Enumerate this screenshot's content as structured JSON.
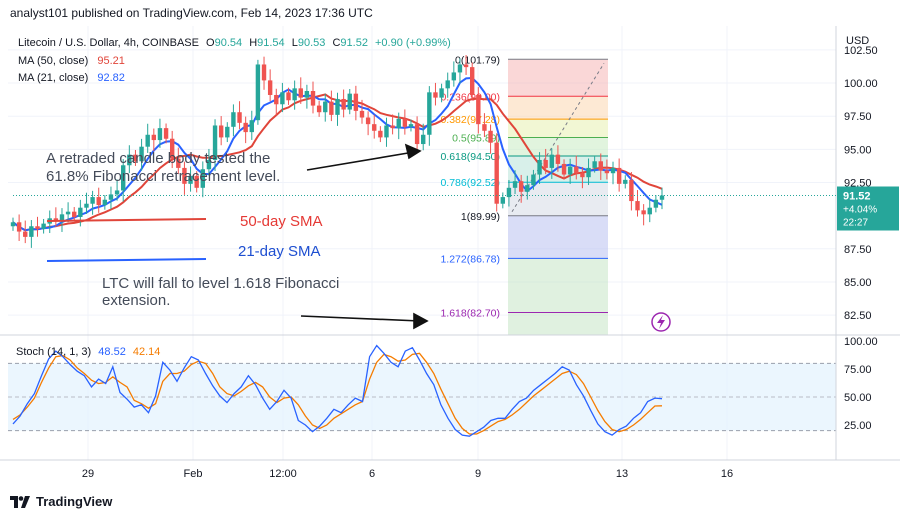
{
  "header": {
    "author": "analyst101",
    "text_mid": "published on",
    "site": "TradingView.com",
    "date": "Feb 14, 2023 17:36 UTC"
  },
  "legend": {
    "symbol": "Litecoin / U.S. Dollar, 4h, COINBASE",
    "o_label": "O",
    "o": "90.54",
    "h_label": "H",
    "h": "91.54",
    "l_label": "L",
    "l": "90.53",
    "c_label": "C",
    "c": "91.52",
    "change": "+0.90 (+0.99%)",
    "ma50_label": "MA (50, close)",
    "ma50_value": "95.21",
    "ma21_label": "MA (21, close)",
    "ma21_value": "92.82"
  },
  "price_axis": {
    "currency": "USD",
    "ticks": [
      "102.50",
      "100.00",
      "97.50",
      "95.00",
      "92.50",
      "87.50",
      "85.00",
      "82.50"
    ],
    "last_price": "91.52",
    "last_change_pct": "+4.04%",
    "countdown": "22:27"
  },
  "stoch_axis": {
    "ticks": [
      "100.00",
      "75.00",
      "50.00",
      "25.00"
    ]
  },
  "time_axis": {
    "ticks": [
      "29",
      "Feb",
      "12:00",
      "6",
      "9",
      "13",
      "16"
    ]
  },
  "stoch_legend": {
    "label": "Stoch (14, 1, 3)",
    "k": "48.52",
    "d": "42.14"
  },
  "fib_levels": [
    {
      "label": "0(101.79)",
      "value": 101.79
    },
    {
      "label": "0.236(99.00)",
      "value": 99.0
    },
    {
      "label": "0.382(97.28)",
      "value": 97.28
    },
    {
      "label": "0.5(95.89)",
      "value": 95.89
    },
    {
      "label": "0.618(94.50)",
      "value": 94.5
    },
    {
      "label": "0.786(92.52)",
      "value": 92.52
    },
    {
      "label": "1(89.99)",
      "value": 89.99
    },
    {
      "label": "1.272(86.78)",
      "value": 86.78
    },
    {
      "label": "1.618(82.70)",
      "value": 82.7
    }
  ],
  "annotations": {
    "note1_line1": "A retraded candle body tested the",
    "note1_line2": "61.8% Fibonacci retracement level.",
    "sma50": "50-day SMA",
    "sma21": "21-day SMA",
    "note2_line1": "LTC will fall to level 1.618 Fibonacci",
    "note2_line2": "extension."
  },
  "footer": {
    "brand": "TradingView"
  },
  "colors": {
    "up": "#26a69a",
    "down": "#ef5350",
    "ma50": "#e0453a",
    "ma21": "#2962ff",
    "stoch_k": "#2962ff",
    "stoch_d": "#f57c00",
    "ann_red": "#e53935",
    "ann_blue": "#1e4fd1"
  },
  "chart_data": [
    {
      "type": "candlestick",
      "title": "Litecoin / U.S. Dollar, 4h, COINBASE",
      "ylim": [
        81.0,
        104.0
      ],
      "x_ticks": [
        "29",
        "Feb",
        "12:00",
        "6",
        "9",
        "13",
        "16"
      ],
      "closes": [
        89.5,
        88.8,
        88.4,
        89.2,
        89.0,
        89.4,
        89.8,
        89.6,
        90.1,
        90.3,
        89.9,
        90.6,
        90.9,
        91.4,
        90.8,
        91.2,
        91.6,
        91.9,
        93.8,
        94.6,
        94.1,
        95.2,
        96.1,
        95.7,
        96.6,
        95.8,
        94.3,
        93.6,
        92.4,
        93.0,
        92.1,
        93.5,
        94.2,
        96.8,
        95.9,
        96.7,
        97.8,
        97.0,
        96.3,
        97.2,
        101.4,
        100.2,
        99.1,
        98.4,
        99.3,
        98.7,
        99.6,
        98.9,
        99.4,
        98.3,
        97.8,
        98.6,
        97.6,
        98.8,
        98.0,
        99.2,
        97.9,
        97.4,
        96.9,
        96.4,
        95.9,
        96.8,
        96.6,
        97.3,
        96.7,
        96.9,
        95.4,
        96.1,
        99.3,
        98.9,
        99.6,
        100.2,
        100.8,
        101.4,
        101.2,
        99.1,
        96.9,
        96.4,
        95.5,
        90.9,
        91.4,
        92.1,
        92.6,
        91.8,
        92.3,
        93.1,
        94.2,
        93.6,
        94.6,
        93.9,
        93.1,
        93.7,
        93.2,
        92.9,
        93.6,
        94.1,
        93.4,
        93.2,
        93.6,
        92.4,
        92.7,
        91.1,
        90.4,
        90.1,
        90.6,
        91.2,
        91.52
      ],
      "stoch": {
        "k": [
          26,
          33,
          44,
          53,
          69,
          84,
          91,
          86,
          79,
          73,
          69,
          59,
          66,
          62,
          77,
          54,
          48,
          41,
          43,
          36,
          51,
          81,
          74,
          64,
          76,
          86,
          83,
          71,
          60,
          51,
          45,
          53,
          59,
          69,
          61,
          49,
          39,
          46,
          56,
          49,
          29,
          25,
          19,
          24,
          31,
          39,
          36,
          43,
          49,
          46,
          86,
          96,
          89,
          81,
          77,
          91,
          94,
          83,
          71,
          61,
          43,
          31,
          21,
          16,
          15,
          19,
          23,
          29,
          31,
          31,
          39,
          46,
          49,
          56,
          61,
          66,
          71,
          77,
          74,
          61,
          51,
          38,
          26,
          19,
          16,
          21,
          24,
          31,
          36,
          46,
          49,
          48.52
        ],
        "d": [
          30,
          34,
          41,
          49,
          63,
          76,
          86,
          87,
          83,
          76,
          71,
          65,
          62,
          63,
          68,
          63,
          59,
          47,
          44,
          40,
          44,
          64,
          71,
          71,
          73,
          79,
          82,
          80,
          71,
          59,
          53,
          51,
          55,
          60,
          63,
          59,
          50,
          45,
          49,
          50,
          43,
          33,
          25,
          22,
          25,
          31,
          35,
          39,
          43,
          46,
          66,
          81,
          88,
          86,
          82,
          83,
          88,
          89,
          81,
          71,
          57,
          44,
          31,
          22,
          17,
          17,
          20,
          24,
          28,
          30,
          34,
          39,
          45,
          51,
          56,
          61,
          66,
          71,
          73,
          70,
          62,
          50,
          38,
          28,
          21,
          19,
          21,
          25,
          30,
          36,
          42,
          42.14
        ]
      }
    }
  ]
}
